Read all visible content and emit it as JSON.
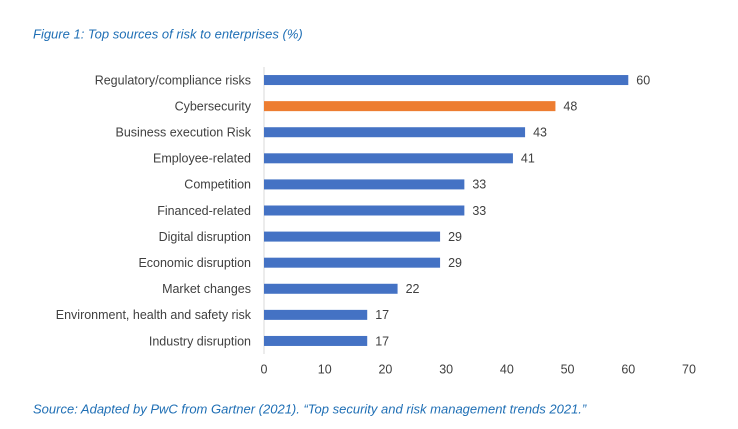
{
  "chart_data": {
    "type": "hbar",
    "title": "Figure 1: Top sources of risk to enterprises (%)",
    "source": "Source: Adapted by PwC from Gartner (2021). “Top security and risk management trends 2021.”",
    "categories": [
      "Regulatory/compliance risks",
      "Cybersecurity",
      "Business execution Risk",
      "Employee-related",
      "Competition",
      "Financed-related",
      "Digital disruption",
      "Economic disruption",
      "Market changes",
      "Environment, health and safety risk",
      "Industry disruption"
    ],
    "values": [
      60,
      48,
      43,
      41,
      33,
      33,
      29,
      29,
      22,
      17,
      17
    ],
    "colors": [
      "#4472c4",
      "#ed7d31",
      "#4472c4",
      "#4472c4",
      "#4472c4",
      "#4472c4",
      "#4472c4",
      "#4472c4",
      "#4472c4",
      "#4472c4",
      "#4472c4"
    ],
    "xlim": [
      0,
      70
    ],
    "xticks": [
      0,
      10,
      20,
      30,
      40,
      50,
      60,
      70
    ],
    "grid": false
  }
}
